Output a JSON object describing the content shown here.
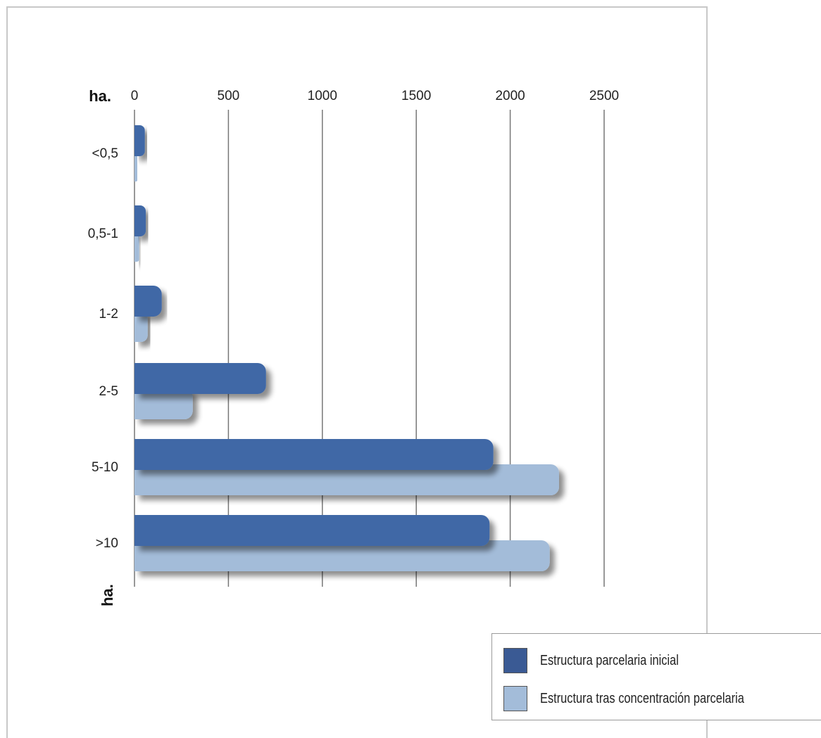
{
  "chart_data": {
    "type": "bar",
    "orientation": "horizontal",
    "categories": [
      "<0,5",
      "0,5-1",
      "1-2",
      "2-5",
      "5-10",
      ">10"
    ],
    "series": [
      {
        "name": "Estructura parcelaria inicial",
        "values": [
          55,
          60,
          145,
          700,
          1910,
          1890
        ],
        "color": "#3f67a6"
      },
      {
        "name": "Estructura tras concentración parcelaria",
        "values": [
          15,
          25,
          70,
          310,
          2260,
          2210
        ],
        "color": "#a3bcd9"
      }
    ],
    "xlim": [
      0,
      2500
    ],
    "xticks": [
      "0",
      "500",
      "1000",
      "1500",
      "2000",
      "2500"
    ],
    "xlabel": "ha.",
    "ylabel": "ha.",
    "grid": true,
    "legend_position": "bottom-right"
  }
}
